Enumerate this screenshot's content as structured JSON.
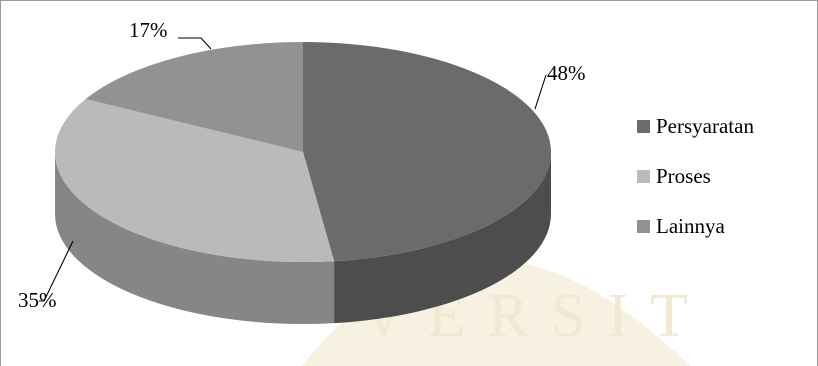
{
  "chart_data": {
    "type": "pie",
    "title": "",
    "three_d": true,
    "categories": [
      "Persyaratan",
      "Proses",
      "Lainnya"
    ],
    "values": [
      48,
      35,
      17
    ],
    "data_labels": [
      "48%",
      "35%",
      "17%"
    ],
    "colors": [
      "#6b6b6b",
      "#bababa",
      "#929292"
    ],
    "legend_position": "right"
  },
  "watermark": {
    "text": "UNIVERSITAS"
  }
}
